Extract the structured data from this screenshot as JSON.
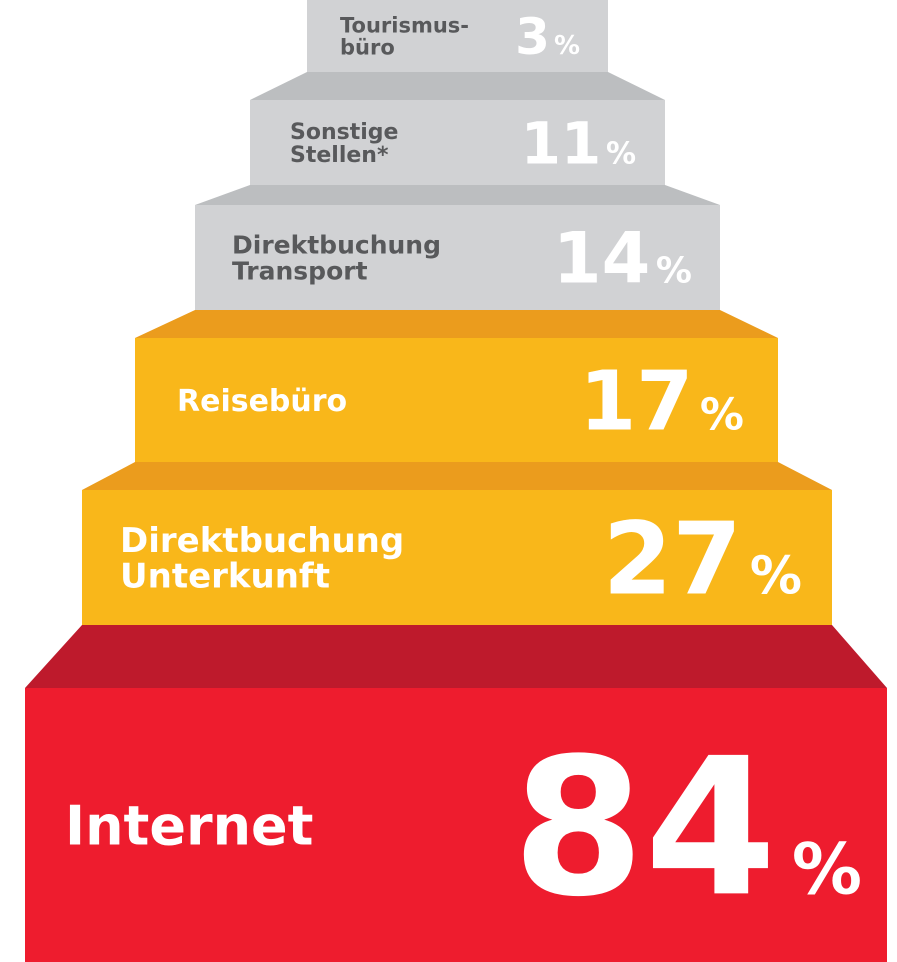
{
  "unit": "%",
  "steps": [
    {
      "label": [
        "Tourismus-",
        "büro"
      ],
      "value": 3
    },
    {
      "label": [
        "Sonstige",
        "Stellen*"
      ],
      "value": 11
    },
    {
      "label": [
        "Direktbuchung",
        "Transport"
      ],
      "value": 14
    },
    {
      "label": [
        "Reisebüro"
      ],
      "value": 17
    },
    {
      "label": [
        "Direktbuchung",
        "Unterkunft"
      ],
      "value": 27
    },
    {
      "label": [
        "Internet"
      ],
      "value": 84
    }
  ]
}
